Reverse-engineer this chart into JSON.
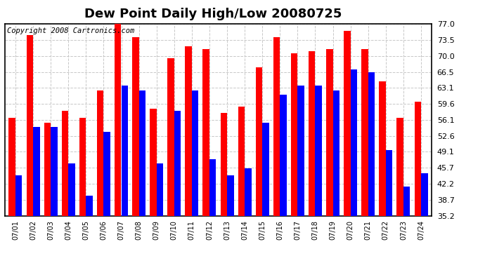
{
  "title": "Dew Point Daily High/Low 20080725",
  "copyright": "Copyright 2008 Cartronics.com",
  "labels": [
    "07/01",
    "07/02",
    "07/03",
    "07/04",
    "07/05",
    "07/06",
    "07/07",
    "07/08",
    "07/09",
    "07/10",
    "07/11",
    "07/12",
    "07/13",
    "07/14",
    "07/15",
    "07/16",
    "07/17",
    "07/18",
    "07/19",
    "07/20",
    "07/21",
    "07/22",
    "07/23",
    "07/24"
  ],
  "highs": [
    56.5,
    74.5,
    55.5,
    58.0,
    56.5,
    62.5,
    77.5,
    74.0,
    58.5,
    69.5,
    72.0,
    71.5,
    57.5,
    59.0,
    67.5,
    74.0,
    70.5,
    71.0,
    71.5,
    75.5,
    71.5,
    64.5,
    56.5,
    60.0
  ],
  "lows": [
    44.0,
    54.5,
    54.5,
    46.5,
    39.5,
    53.5,
    63.5,
    62.5,
    46.5,
    58.0,
    62.5,
    47.5,
    44.0,
    45.5,
    55.5,
    61.5,
    63.5,
    63.5,
    62.5,
    67.0,
    66.5,
    49.5,
    41.5,
    44.5
  ],
  "high_color": "#ff0000",
  "low_color": "#0000ff",
  "bg_color": "#ffffff",
  "plot_bg_color": "#ffffff",
  "grid_color": "#c8c8c8",
  "ymin": 35.2,
  "ymax": 77.0,
  "yticks": [
    35.2,
    38.7,
    42.2,
    45.7,
    49.1,
    52.6,
    56.1,
    59.6,
    63.1,
    66.5,
    70.0,
    73.5,
    77.0
  ],
  "title_fontsize": 13,
  "copyright_fontsize": 7.5,
  "bar_width": 0.38,
  "xlabel_fontsize": 7,
  "ylabel_fontsize": 8
}
